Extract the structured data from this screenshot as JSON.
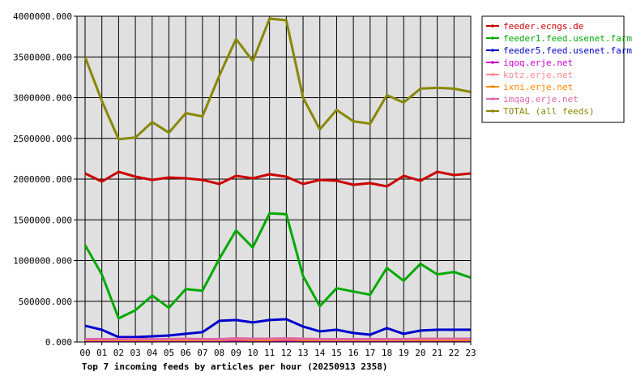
{
  "chart_data": {
    "type": "line",
    "title": "Top 7 incoming feeds by articles per hour (20250913 2358)",
    "xlabel": "",
    "ylabel": "",
    "categories": [
      "00",
      "01",
      "02",
      "03",
      "04",
      "05",
      "06",
      "07",
      "08",
      "09",
      "10",
      "11",
      "12",
      "13",
      "14",
      "15",
      "16",
      "17",
      "18",
      "19",
      "20",
      "21",
      "22",
      "23"
    ],
    "yticks": [
      "0.000",
      "500000.000",
      "1000000.000",
      "1500000.000",
      "2000000.000",
      "2500000.000",
      "3000000.000",
      "3500000.000",
      "4000000.000"
    ],
    "ylim": [
      0,
      4000000
    ],
    "grid": true,
    "legend_position": "right",
    "series": [
      {
        "name": "feeder.ecngs.de",
        "color": "#cc0000",
        "values": [
          2070000,
          1970000,
          2090000,
          2030000,
          1990000,
          2020000,
          2010000,
          1990000,
          1940000,
          2040000,
          2010000,
          2060000,
          2030000,
          1940000,
          1990000,
          1980000,
          1930000,
          1950000,
          1910000,
          2040000,
          1980000,
          2090000,
          2050000,
          2070000
        ]
      },
      {
        "name": "feeder1.feed.usenet.farm",
        "color": "#00aa00",
        "values": [
          1190000,
          830000,
          290000,
          390000,
          570000,
          420000,
          650000,
          630000,
          1020000,
          1370000,
          1160000,
          1580000,
          1570000,
          810000,
          440000,
          660000,
          620000,
          580000,
          910000,
          750000,
          960000,
          830000,
          860000,
          790000
        ]
      },
      {
        "name": "feeder5.feed.usenet.farm",
        "color": "#0000cc",
        "values": [
          200000,
          150000,
          60000,
          60000,
          70000,
          80000,
          100000,
          120000,
          260000,
          270000,
          240000,
          270000,
          280000,
          190000,
          130000,
          150000,
          110000,
          90000,
          170000,
          100000,
          140000,
          150000,
          150000,
          150000
        ]
      },
      {
        "name": "iqoq.erje.net",
        "color": "#cc00cc",
        "values": [
          15000,
          15000,
          15000,
          15000,
          15000,
          15000,
          15000,
          15000,
          15000,
          20000,
          15000,
          15000,
          20000,
          15000,
          15000,
          15000,
          15000,
          15000,
          15000,
          15000,
          15000,
          15000,
          15000,
          15000
        ]
      },
      {
        "name": "kotz.erje.net",
        "color": "#ff8888",
        "values": [
          30000,
          30000,
          30000,
          30000,
          30000,
          30000,
          30000,
          30000,
          30000,
          40000,
          30000,
          30000,
          40000,
          30000,
          30000,
          30000,
          30000,
          30000,
          30000,
          30000,
          30000,
          30000,
          30000,
          30000
        ]
      },
      {
        "name": "ixni.erje.net",
        "color": "#ff8800",
        "values": [
          25000,
          25000,
          25000,
          25000,
          25000,
          25000,
          25000,
          25000,
          25000,
          35000,
          25000,
          25000,
          35000,
          25000,
          25000,
          25000,
          25000,
          25000,
          25000,
          25000,
          25000,
          25000,
          25000,
          25000
        ]
      },
      {
        "name": "imqag.erje.net",
        "color": "#dd66aa",
        "values": [
          35000,
          35000,
          35000,
          35000,
          35000,
          35000,
          40000,
          35000,
          35000,
          45000,
          40000,
          40000,
          45000,
          40000,
          35000,
          35000,
          35000,
          35000,
          35000,
          35000,
          40000,
          40000,
          40000,
          40000
        ]
      },
      {
        "name": "TOTAL (all feeds)",
        "color": "#888800",
        "values": [
          3500000,
          2960000,
          2490000,
          2510000,
          2700000,
          2570000,
          2810000,
          2770000,
          3270000,
          3720000,
          3450000,
          3970000,
          3950000,
          3000000,
          2610000,
          2850000,
          2710000,
          2680000,
          3030000,
          2940000,
          3110000,
          3120000,
          3110000,
          3070000
        ]
      }
    ]
  }
}
